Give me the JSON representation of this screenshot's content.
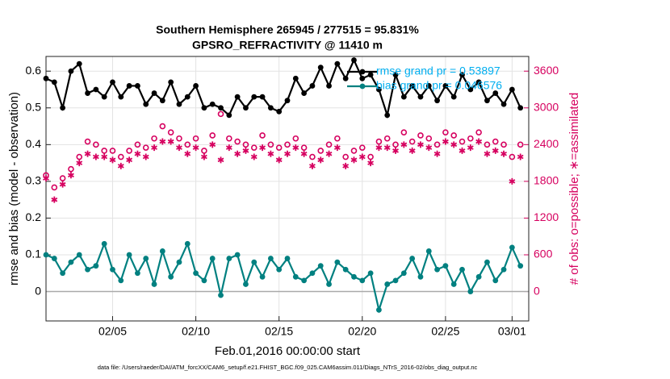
{
  "chart_data": {
    "type": "line",
    "title": "Southern Hemisphere 265945 / 277515 = 95.831%",
    "subtitle": "GPSRO_REFRACTIVITY @ 11410 m",
    "x_label": "Feb.01,2016 00:00:00 start",
    "y_label": "rmse and bias (model - observation)",
    "y2_label": "# of obs: o=possible; ∗=assimilated",
    "footnote": "data file: /Users/raeder/DAI/ATM_forcXX/CAM6_setup/f.e21.FHIST_BGC.f09_025.CAM6assim.011/Diags_NTrS_2016-02/obs_diag_output.nc",
    "grid": true,
    "legend": "upper right",
    "xlim": [
      0,
      29
    ],
    "xticks": [
      {
        "value": 4,
        "label": "02/05"
      },
      {
        "value": 9,
        "label": "02/10"
      },
      {
        "value": 14,
        "label": "02/15"
      },
      {
        "value": 19,
        "label": "02/20"
      },
      {
        "value": 24,
        "label": "02/25"
      },
      {
        "value": 28,
        "label": "03/01"
      }
    ],
    "ylim": [
      -0.08,
      0.64
    ],
    "yticks": [
      0,
      0.1,
      0.2,
      0.3,
      0.4,
      0.5,
      0.6
    ],
    "y2lim": [
      -480,
      3840
    ],
    "y2ticks": [
      0,
      600,
      1200,
      1800,
      2400,
      3000,
      3600
    ],
    "x": [
      0,
      0.5,
      1,
      1.5,
      2,
      2.5,
      3,
      3.5,
      4,
      4.5,
      5,
      5.5,
      6,
      6.5,
      7,
      7.5,
      8,
      8.5,
      9,
      9.5,
      10,
      10.5,
      11,
      11.5,
      12,
      12.5,
      13,
      13.5,
      14,
      14.5,
      15,
      15.5,
      16,
      16.5,
      17,
      17.5,
      18,
      18.5,
      19,
      19.5,
      20,
      20.5,
      21,
      21.5,
      22,
      22.5,
      23,
      23.5,
      24,
      24.5,
      25,
      25.5,
      26,
      26.5,
      27,
      27.5,
      28,
      28.5
    ],
    "series": [
      {
        "name": "rmse grand pr = 0.53897",
        "color": "#000000",
        "marker": "filled",
        "line": true,
        "values": [
          0.58,
          0.57,
          0.5,
          0.6,
          0.62,
          0.54,
          0.55,
          0.53,
          0.57,
          0.53,
          0.56,
          0.56,
          0.51,
          0.54,
          0.52,
          0.57,
          0.51,
          0.53,
          0.56,
          0.5,
          0.51,
          0.5,
          0.48,
          0.53,
          0.5,
          0.53,
          0.53,
          0.5,
          0.49,
          0.52,
          0.58,
          0.54,
          0.56,
          0.61,
          0.56,
          0.62,
          0.58,
          0.63,
          0.58,
          0.59,
          0.55,
          0.48,
          0.59,
          0.53,
          0.56,
          0.53,
          0.56,
          0.52,
          0.56,
          0.53,
          0.59,
          0.55,
          0.57,
          0.52,
          0.54,
          0.51,
          0.55,
          0.5
        ]
      },
      {
        "name": "bias grand pr = 0.046576",
        "color": "#008080",
        "marker": "filled",
        "line": true,
        "values": [
          0.1,
          0.09,
          0.05,
          0.08,
          0.1,
          0.06,
          0.07,
          0.13,
          0.06,
          0.03,
          0.1,
          0.05,
          0.09,
          0.02,
          0.11,
          0.04,
          0.08,
          0.13,
          0.05,
          0.03,
          0.09,
          -0.01,
          0.09,
          0.1,
          0.02,
          0.08,
          0.04,
          0.09,
          0.06,
          0.09,
          0.04,
          0.03,
          0.05,
          0.07,
          0.02,
          0.08,
          0.06,
          0.04,
          0.03,
          0.05,
          -0.05,
          0.02,
          0.03,
          0.05,
          0.09,
          0.04,
          0.11,
          0.06,
          0.07,
          0.02,
          0.06,
          0.0,
          0.04,
          0.08,
          0.03,
          0.06,
          0.12,
          0.07
        ]
      },
      {
        "color": "#d6005f",
        "marker": "circle",
        "line": false,
        "axis": "y2",
        "values": [
          1900,
          1700,
          1850,
          2000,
          2200,
          2450,
          2400,
          2300,
          2300,
          2200,
          2300,
          2400,
          2350,
          2500,
          2700,
          2600,
          2500,
          2400,
          2500,
          2300,
          2550,
          2900,
          2500,
          2450,
          2400,
          2350,
          2550,
          2400,
          2350,
          2400,
          2500,
          2350,
          2200,
          2300,
          2400,
          2500,
          2200,
          2300,
          2350,
          2200,
          2450,
          2500,
          2400,
          2600,
          2450,
          2550,
          2500,
          2400,
          2600,
          2550,
          2450,
          2500,
          2600,
          2400,
          2450,
          2400,
          2200,
          2400
        ]
      },
      {
        "color": "#d6005f",
        "marker": "asterisk",
        "line": false,
        "axis": "y2",
        "values": [
          1850,
          1500,
          1750,
          1900,
          2100,
          2250,
          2200,
          2200,
          2150,
          2050,
          2150,
          2250,
          2200,
          2350,
          2450,
          2450,
          2350,
          2250,
          2350,
          2200,
          2400,
          2150,
          2350,
          2250,
          2300,
          2200,
          2350,
          2250,
          2150,
          2250,
          2350,
          2250,
          2050,
          2150,
          2250,
          2350,
          2050,
          2150,
          2200,
          2100,
          2350,
          2350,
          2300,
          2400,
          2300,
          2400,
          2350,
          2250,
          2450,
          2400,
          2300,
          2350,
          2450,
          2250,
          2300,
          2250,
          1800,
          2200
        ]
      }
    ]
  }
}
